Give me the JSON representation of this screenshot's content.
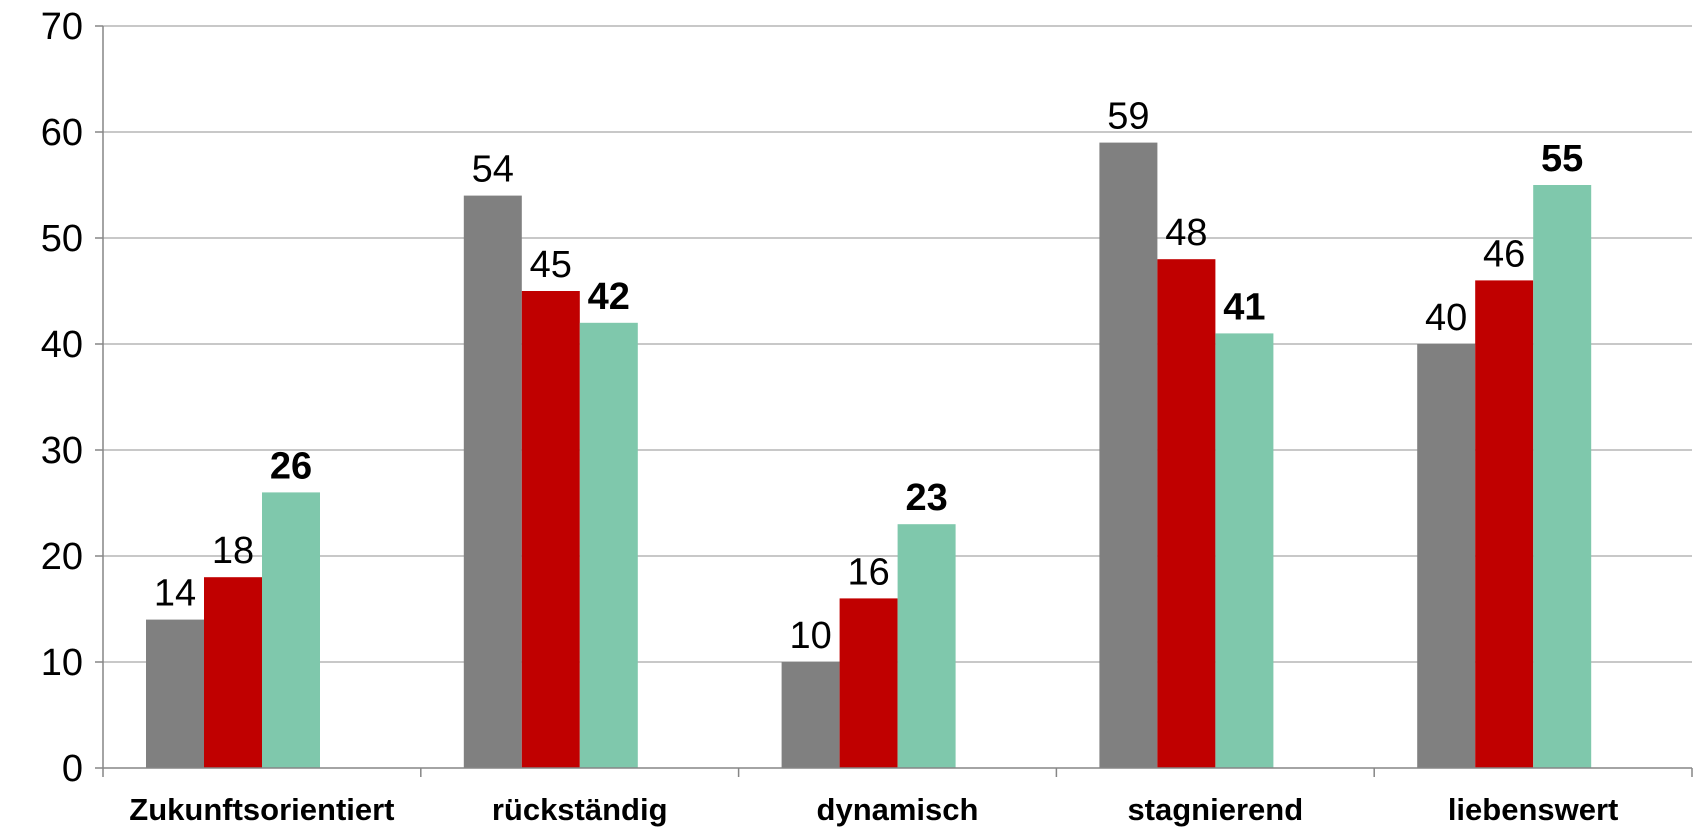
{
  "chart_data": {
    "type": "bar",
    "title": "",
    "xlabel": "",
    "ylabel": "",
    "ylim": [
      0,
      70
    ],
    "yticks": [
      0,
      10,
      20,
      30,
      40,
      50,
      60,
      70
    ],
    "grid": true,
    "legend": "none",
    "categories": [
      "Zukunftsorientiert",
      "rückständig",
      "dynamisch",
      "stagnierend",
      "liebenswert"
    ],
    "series": [
      {
        "values": [
          14,
          54,
          10,
          59,
          40
        ],
        "color": "#808080",
        "label_bold": false
      },
      {
        "values": [
          18,
          45,
          16,
          48,
          46
        ],
        "color": "#c00000",
        "label_bold": false
      },
      {
        "values": [
          26,
          42,
          23,
          41,
          55
        ],
        "color": "#7fc8ac",
        "label_bold": true
      }
    ]
  }
}
